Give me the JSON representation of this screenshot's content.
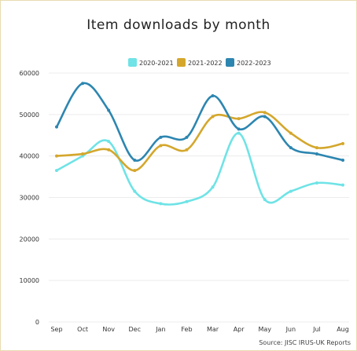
{
  "chart_data": {
    "type": "line",
    "title": "Item downloads by month",
    "source": "Source: JISC IRUS-UK Reports",
    "categories": [
      "Sep",
      "Oct",
      "Nov",
      "Dec",
      "Jan",
      "Feb",
      "Mar",
      "Apr",
      "May",
      "Jun",
      "Jul",
      "Aug"
    ],
    "ylim": [
      0,
      60000
    ],
    "yticks": [
      0,
      10000,
      20000,
      30000,
      40000,
      50000,
      60000
    ],
    "grid": true,
    "legend_position": "top-right",
    "series": [
      {
        "name": "2020-2021",
        "color": "#6fe3e6",
        "values": [
          36500,
          40000,
          43500,
          31500,
          28500,
          29000,
          32500,
          45500,
          29500,
          31500,
          33500,
          33000
        ]
      },
      {
        "name": "2021-2022",
        "color": "#d4a72c",
        "values": [
          40000,
          40500,
          41500,
          36500,
          42500,
          41500,
          49500,
          49000,
          50500,
          45500,
          42000,
          43000
        ]
      },
      {
        "name": "2022-2023",
        "color": "#2d86b0",
        "values": [
          47000,
          57500,
          51000,
          39000,
          44500,
          44500,
          54500,
          46500,
          49500,
          42000,
          40500,
          39000
        ]
      }
    ]
  }
}
